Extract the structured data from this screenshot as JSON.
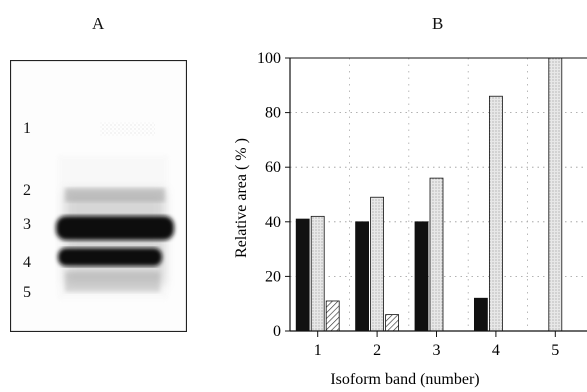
{
  "panels": {
    "a_label": "A",
    "b_label": "B"
  },
  "gel": {
    "lane_labels": [
      "1",
      "2",
      "3",
      "4",
      "5"
    ],
    "colors": {
      "frame": "#222222",
      "band": "#111111",
      "smear": "#8a8a8a"
    }
  },
  "chart_data": {
    "type": "bar",
    "xlabel": "Isoform band (number)",
    "ylabel": "Relative area ( % )",
    "ylim": [
      0,
      100
    ],
    "yticks": [
      0,
      20,
      40,
      60,
      80,
      100
    ],
    "categories": [
      "1",
      "2",
      "3",
      "4",
      "5"
    ],
    "grid": true,
    "series": [
      {
        "values": [
          41,
          40,
          40,
          12,
          0
        ],
        "fill": "black"
      },
      {
        "values": [
          42,
          49,
          56,
          86,
          100
        ],
        "fill": "light-stipple"
      },
      {
        "values": [
          11,
          6,
          0,
          0,
          0
        ],
        "fill": "hatched"
      }
    ],
    "colors": {
      "black": "#111111",
      "stipple": "#d9d9d9",
      "hatch": "#444444"
    }
  }
}
